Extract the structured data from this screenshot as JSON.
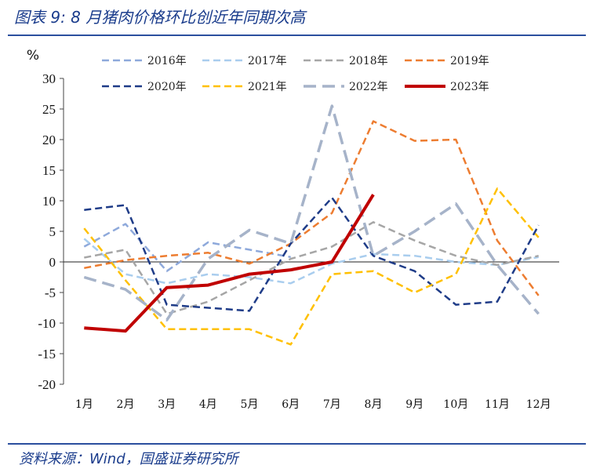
{
  "header": {
    "title": "图表 9:  8 月猪肉价格环比创近年同期次高"
  },
  "footer": {
    "source": "资料来源：Wind，国盛证券研究所"
  },
  "chart_data": {
    "type": "line",
    "unit_label": "%",
    "categories": [
      "1月",
      "2月",
      "3月",
      "4月",
      "5月",
      "6月",
      "7月",
      "8月",
      "9月",
      "10月",
      "11月",
      "12月"
    ],
    "ylim": [
      -20,
      30
    ],
    "yticks": [
      -20,
      -15,
      -10,
      -5,
      0,
      5,
      10,
      15,
      20,
      25,
      30
    ],
    "legend_position": "top",
    "series": [
      {
        "name": "2016年",
        "color": "#8ea9db",
        "dash": "dash",
        "width": 2.5,
        "values": [
          2.5,
          6.2,
          -1.5,
          3.2,
          2.0,
          0.8,
          null,
          null,
          null,
          null,
          null,
          null
        ]
      },
      {
        "name": "2017年",
        "color": "#a9cdee",
        "dash": "dash",
        "width": 2.5,
        "values": [
          3.8,
          -2.0,
          -3.5,
          -2.0,
          -2.5,
          -3.5,
          -0.3,
          1.3,
          1.0,
          0.0,
          -0.5,
          0.8
        ]
      },
      {
        "name": "2018年",
        "color": "#a6a6a6",
        "dash": "dash",
        "width": 2.5,
        "values": [
          0.7,
          2.0,
          -8.5,
          -6.5,
          -3.0,
          0.5,
          2.5,
          6.5,
          3.5,
          1.0,
          -0.5,
          1.0
        ]
      },
      {
        "name": "2019年",
        "color": "#ed7d31",
        "dash": "dash",
        "width": 2.5,
        "values": [
          -1.0,
          0.3,
          1.0,
          1.5,
          -0.3,
          3.0,
          8.0,
          23.0,
          19.8,
          20.0,
          3.5,
          -5.5
        ]
      },
      {
        "name": "2020年",
        "color": "#1f3c88",
        "dash": "dash",
        "width": 2.5,
        "values": [
          8.5,
          9.3,
          -7.0,
          -7.5,
          -8.0,
          3.0,
          10.5,
          1.0,
          -1.5,
          -7.0,
          -6.5,
          6.0
        ]
      },
      {
        "name": "2021年",
        "color": "#ffc000",
        "dash": "dash",
        "width": 2.5,
        "values": [
          5.5,
          -3.0,
          -11.0,
          -11.0,
          -11.0,
          -13.5,
          -2.0,
          -1.5,
          -5.0,
          -2.0,
          12.0,
          4.0
        ]
      },
      {
        "name": "2022年",
        "color": "#a6b3c9",
        "dash": "longdash",
        "width": 3.5,
        "values": [
          -2.5,
          -4.5,
          -9.5,
          0.5,
          5.2,
          3.0,
          25.5,
          1.0,
          5.0,
          9.5,
          -0.5,
          -8.5
        ]
      },
      {
        "name": "2023年",
        "color": "#c00000",
        "dash": "solid",
        "width": 4,
        "values": [
          -10.8,
          -11.3,
          -4.2,
          -3.8,
          -2.0,
          -1.3,
          0.0,
          11.0,
          null,
          null,
          null,
          null
        ]
      }
    ]
  }
}
